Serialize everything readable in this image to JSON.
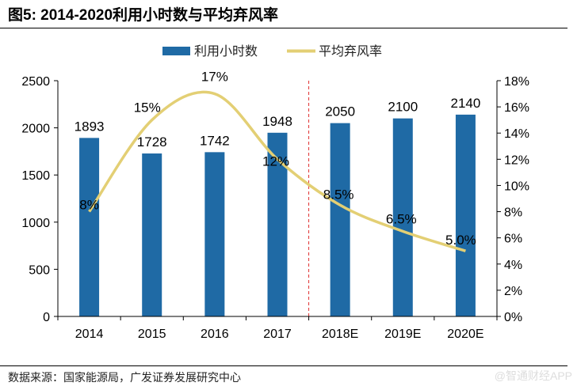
{
  "title": "图5: 2014-2020利用小时数与平均弃风率",
  "source": "数据来源：国家能源局，广发证券发展研究中心",
  "watermark": "@智通财经APP",
  "chart_data": {
    "type": "bar+line",
    "categories": [
      "2014",
      "2015",
      "2016",
      "2017",
      "2018E",
      "2019E",
      "2020E"
    ],
    "series": [
      {
        "name": "利用小时数",
        "type": "bar",
        "axis": "left",
        "color": "#1f6aa5",
        "values": [
          1893,
          1728,
          1742,
          1948,
          2050,
          2100,
          2140
        ],
        "labels": [
          "1893",
          "1728",
          "1742",
          "1948",
          "2050",
          "2100",
          "2140"
        ]
      },
      {
        "name": "平均弃风率",
        "type": "line",
        "axis": "right",
        "color": "#e3cf74",
        "values": [
          8,
          15,
          17,
          12,
          8.5,
          6.5,
          5.0
        ],
        "labels": [
          "8%",
          "15%",
          "17%",
          "12%",
          "8.5%",
          "6.5%",
          "5.0%"
        ]
      }
    ],
    "left_axis": {
      "range": [
        0,
        2500
      ],
      "ticks": [
        "0",
        "500",
        "1000",
        "1500",
        "2000",
        "2500"
      ]
    },
    "right_axis": {
      "range": [
        0,
        18
      ],
      "ticks": [
        "0%",
        "2%",
        "4%",
        "6%",
        "8%",
        "10%",
        "12%",
        "14%",
        "16%",
        "18%"
      ]
    },
    "divider_after": "2017",
    "divider_color": "#e03030",
    "legend": "top-center",
    "grid": false
  }
}
